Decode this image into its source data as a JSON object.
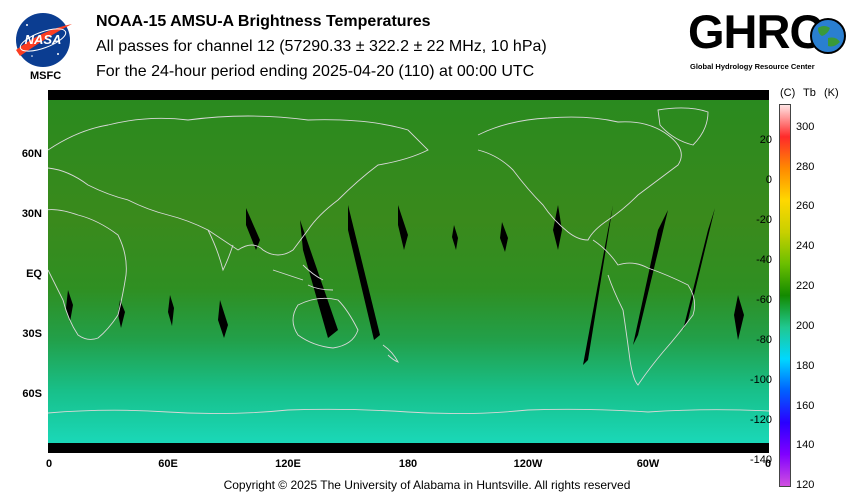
{
  "header": {
    "line1": "NOAA-15 AMSU-A Brightness Temperatures",
    "line2": "All passes for channel 12 (57290.33 ± 322.2 ± 22 MHz, 10 hPa)",
    "line3": "For the 24-hour period ending 2025-04-20 (110) at 00:00 UTC"
  },
  "logos": {
    "nasa_text": "NASA",
    "msfc_label": "MSFC",
    "ghrc_word": "GHRC",
    "ghrc_subtitle": "Global Hydrology Resource Center"
  },
  "map": {
    "lat_labels": [
      "60N",
      "30N",
      "EQ",
      "30S",
      "60S"
    ],
    "lon_labels": [
      "0",
      "60E",
      "120E",
      "180",
      "120W",
      "60W",
      "0"
    ]
  },
  "colorbar": {
    "header_c": "(C)",
    "header_tb": "Tb",
    "header_k": "(K)",
    "celsius_ticks": [
      "20",
      "0",
      "-20",
      "-40",
      "-60",
      "-80",
      "-100",
      "-120",
      "-140"
    ],
    "kelvin_ticks": [
      "300",
      "280",
      "260",
      "240",
      "220",
      "200",
      "180",
      "160",
      "140",
      "120"
    ],
    "colors": [
      "#ffe4e4",
      "#ff2a2a",
      "#ff8a00",
      "#ffd800",
      "#c8d000",
      "#6bbf00",
      "#138a00",
      "#20c890",
      "#00d8ff",
      "#0060ff",
      "#2a00ff",
      "#8000ff",
      "#d050e0"
    ]
  },
  "footer": {
    "copyright": "Copyright © 2025 The University of Alabama in Huntsville.  All rights reserved"
  }
}
